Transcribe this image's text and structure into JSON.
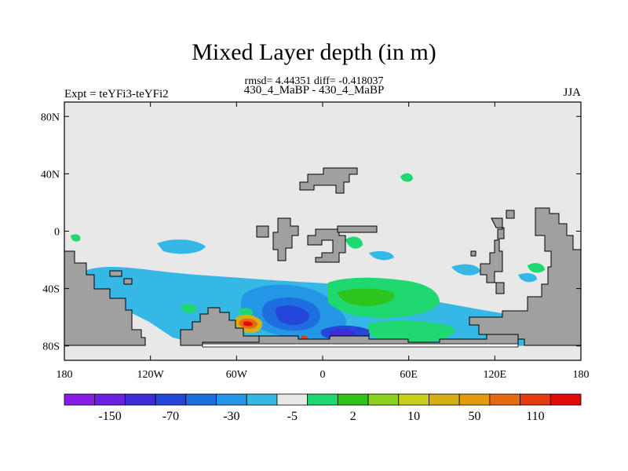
{
  "chart_data": {
    "type": "heatmap",
    "title": "Mixed Layer depth (in m)",
    "stats_line": "rmsd= 4.44351  diff= -0.418037",
    "left_label": "Expt = teYFi3-teYFi2",
    "center_label": "430_4_MaBP - 430_4_MaBP",
    "right_label": "JJA",
    "x_axis": {
      "range": [
        -180,
        180
      ],
      "ticks": [
        -180,
        -120,
        -60,
        0,
        60,
        120,
        180
      ],
      "tick_labels": [
        "180",
        "120W",
        "60W",
        "0",
        "60E",
        "120E",
        "180"
      ]
    },
    "y_axis": {
      "range": [
        -90,
        90
      ],
      "ticks": [
        80,
        40,
        0,
        -40,
        -80
      ],
      "tick_labels": [
        "80N",
        "40N",
        "0",
        "40S",
        "80S"
      ]
    },
    "colorbar": {
      "colors": [
        "#8a1ce8",
        "#6b1fe0",
        "#3d2bd8",
        "#2346db",
        "#1f6ee0",
        "#2496e6",
        "#36b8e6",
        "#e8e8e8",
        "#20d870",
        "#2ec41e",
        "#8ad21e",
        "#c8d01a",
        "#d6b010",
        "#e29a0e",
        "#e66a10",
        "#e63a12",
        "#e00a0a"
      ],
      "labels": [
        "-150",
        "-70",
        "-30",
        "-5",
        "2",
        "10",
        "50",
        "110"
      ]
    }
  }
}
